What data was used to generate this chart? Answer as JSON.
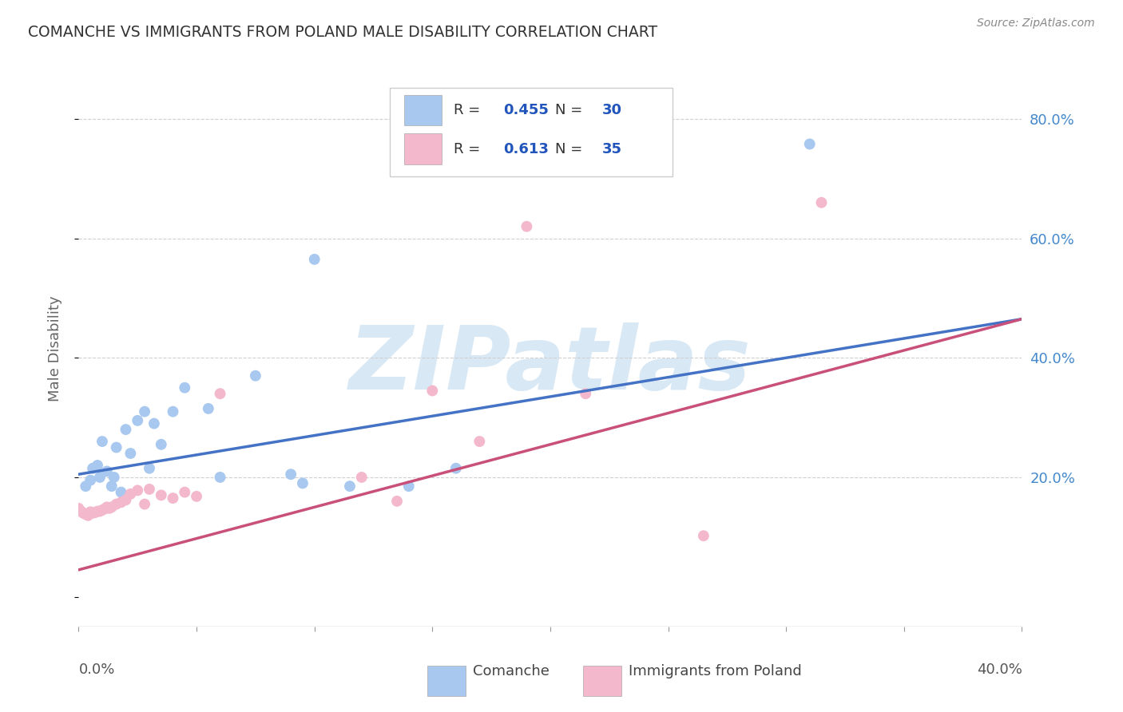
{
  "title": "COMANCHE VS IMMIGRANTS FROM POLAND MALE DISABILITY CORRELATION CHART",
  "source": "Source: ZipAtlas.com",
  "ylabel": "Male Disability",
  "y_ticks": [
    0.0,
    0.2,
    0.4,
    0.6,
    0.8
  ],
  "y_tick_labels": [
    "",
    "20.0%",
    "40.0%",
    "60.0%",
    "80.0%"
  ],
  "x_ticks": [
    0.0,
    0.05,
    0.1,
    0.15,
    0.2,
    0.25,
    0.3,
    0.35,
    0.4
  ],
  "xlim": [
    0.0,
    0.4
  ],
  "ylim": [
    -0.05,
    0.88
  ],
  "comanche_R": 0.455,
  "comanche_N": 30,
  "poland_R": 0.613,
  "poland_N": 35,
  "comanche_color": "#a8c8f0",
  "comanche_line_color": "#4472c4",
  "poland_color": "#f4b8cc",
  "poland_line_color": "#c8507a",
  "comanche_x": [
    0.003,
    0.005,
    0.006,
    0.008,
    0.009,
    0.01,
    0.012,
    0.014,
    0.015,
    0.016,
    0.018,
    0.02,
    0.022,
    0.025,
    0.028,
    0.03,
    0.032,
    0.035,
    0.04,
    0.045,
    0.055,
    0.06,
    0.075,
    0.09,
    0.095,
    0.1,
    0.115,
    0.14,
    0.16,
    0.31
  ],
  "comanche_y": [
    0.185,
    0.195,
    0.215,
    0.22,
    0.2,
    0.26,
    0.21,
    0.185,
    0.2,
    0.25,
    0.175,
    0.28,
    0.24,
    0.295,
    0.31,
    0.215,
    0.29,
    0.255,
    0.31,
    0.35,
    0.315,
    0.2,
    0.37,
    0.205,
    0.19,
    0.565,
    0.185,
    0.185,
    0.215,
    0.758
  ],
  "poland_x": [
    0.0,
    0.001,
    0.002,
    0.003,
    0.004,
    0.005,
    0.006,
    0.007,
    0.008,
    0.009,
    0.01,
    0.011,
    0.012,
    0.013,
    0.014,
    0.016,
    0.018,
    0.02,
    0.022,
    0.025,
    0.028,
    0.03,
    0.035,
    0.04,
    0.045,
    0.05,
    0.06,
    0.12,
    0.135,
    0.15,
    0.17,
    0.19,
    0.215,
    0.265,
    0.315
  ],
  "poland_y": [
    0.148,
    0.143,
    0.14,
    0.138,
    0.136,
    0.142,
    0.14,
    0.141,
    0.143,
    0.143,
    0.145,
    0.147,
    0.15,
    0.148,
    0.15,
    0.155,
    0.158,
    0.162,
    0.172,
    0.178,
    0.155,
    0.18,
    0.17,
    0.165,
    0.175,
    0.168,
    0.34,
    0.2,
    0.16,
    0.345,
    0.26,
    0.62,
    0.34,
    0.102,
    0.66
  ],
  "comanche_line_x0": 0.0,
  "comanche_line_y0": 0.205,
  "comanche_line_x1": 0.4,
  "comanche_line_y1": 0.465,
  "poland_line_x0": 0.0,
  "poland_line_y0": 0.045,
  "poland_line_x1": 0.4,
  "poland_line_y1": 0.465,
  "background_color": "#ffffff",
  "grid_color": "#d0d0d0",
  "legend_text_color": "#333333",
  "legend_value_color": "#2255bb",
  "watermark_text": "ZIPatlas",
  "watermark_color": "#d8e8f5",
  "legend_R_label": "R = ",
  "legend_N_label": "N = ",
  "comanche_R_str": "0.455",
  "comanche_N_str": "30",
  "poland_R_str": "0.613",
  "poland_N_str": "35",
  "legend_comanche_label": "Comanche",
  "legend_poland_label": "Immigrants from Poland"
}
